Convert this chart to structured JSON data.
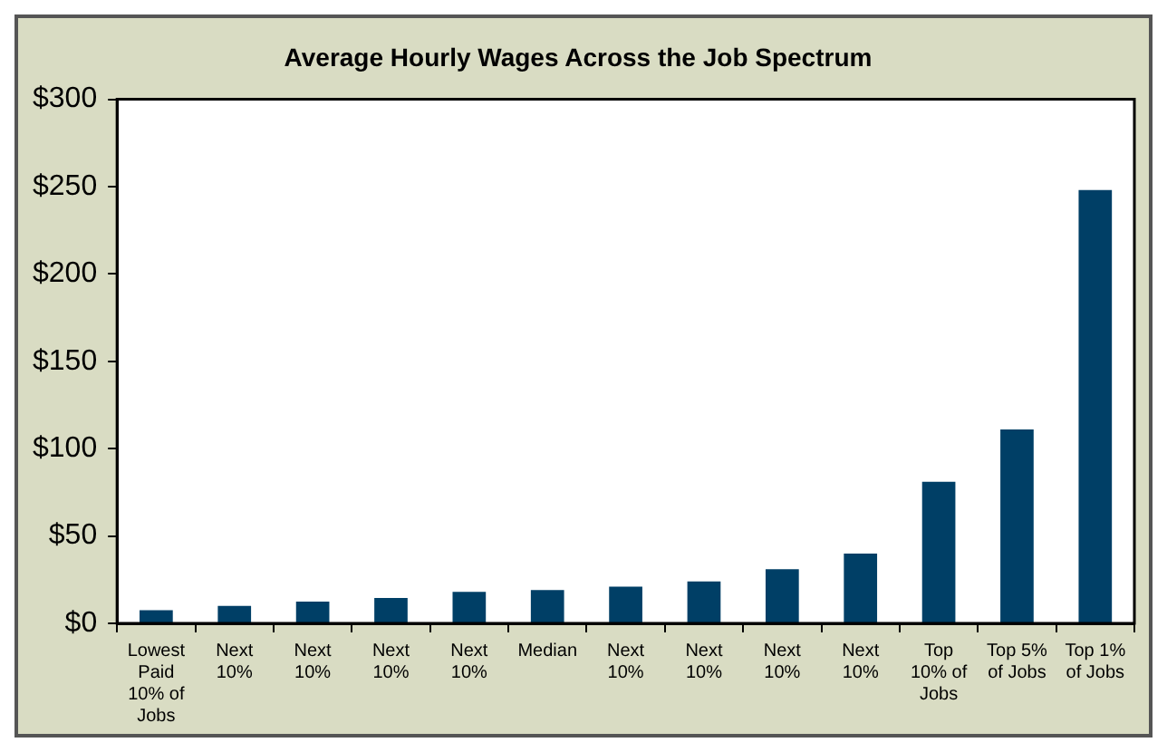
{
  "chart_data": {
    "type": "bar",
    "title": "Average Hourly Wages Across the Job Spectrum",
    "categories": [
      "Lowest Paid 10% of Jobs",
      "Next 10%",
      "Next 10%",
      "Next 10%",
      "Next 10%",
      "Median",
      "Next 10%",
      "Next 10%",
      "Next 10%",
      "Next 10%",
      "Top 10% of Jobs",
      "Top 5% of Jobs",
      "Top 1% of Jobs"
    ],
    "values": [
      7.5,
      10,
      12.5,
      14.5,
      18,
      19,
      21,
      24,
      31,
      40,
      81,
      111,
      248
    ],
    "color": "#003f66",
    "ylim": [
      0,
      300
    ],
    "yticks": [
      {
        "value": 0,
        "label": "$0"
      },
      {
        "value": 50,
        "label": "$50"
      },
      {
        "value": 100,
        "label": "$100"
      },
      {
        "value": 150,
        "label": "$150"
      },
      {
        "value": 200,
        "label": "$200"
      },
      {
        "value": 250,
        "label": "$250"
      },
      {
        "value": 300,
        "label": "$300"
      }
    ],
    "grid": false,
    "legend": false
  }
}
